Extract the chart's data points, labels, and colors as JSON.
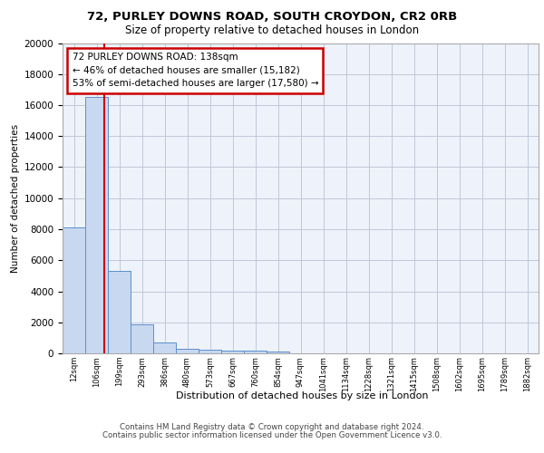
{
  "title1": "72, PURLEY DOWNS ROAD, SOUTH CROYDON, CR2 0RB",
  "title2": "Size of property relative to detached houses in London",
  "xlabel": "Distribution of detached houses by size in London",
  "ylabel": "Number of detached properties",
  "categories": [
    "12sqm",
    "106sqm",
    "199sqm",
    "293sqm",
    "386sqm",
    "480sqm",
    "573sqm",
    "667sqm",
    "760sqm",
    "854sqm",
    "947sqm",
    "1041sqm",
    "1134sqm",
    "1228sqm",
    "1321sqm",
    "1415sqm",
    "1508sqm",
    "1602sqm",
    "1695sqm",
    "1789sqm",
    "1882sqm"
  ],
  "values": [
    8100,
    16500,
    5300,
    1850,
    700,
    300,
    220,
    180,
    170,
    130,
    0,
    0,
    0,
    0,
    0,
    0,
    0,
    0,
    0,
    0,
    0
  ],
  "bar_color": "#c8d8f0",
  "bar_edge_color": "#5b8fcc",
  "annotation_text": "72 PURLEY DOWNS ROAD: 138sqm\n← 46% of detached houses are smaller (15,182)\n53% of semi-detached houses are larger (17,580) →",
  "annotation_box_color": "#ffffff",
  "annotation_edge_color": "#cc0000",
  "red_line_color": "#cc0000",
  "grid_color": "#c0c8d8",
  "background_color": "#eef2fa",
  "ylim": [
    0,
    20000
  ],
  "yticks": [
    0,
    2000,
    4000,
    6000,
    8000,
    10000,
    12000,
    14000,
    16000,
    18000,
    20000
  ],
  "footer1": "Contains HM Land Registry data © Crown copyright and database right 2024.",
  "footer2": "Contains public sector information licensed under the Open Government Licence v3.0."
}
